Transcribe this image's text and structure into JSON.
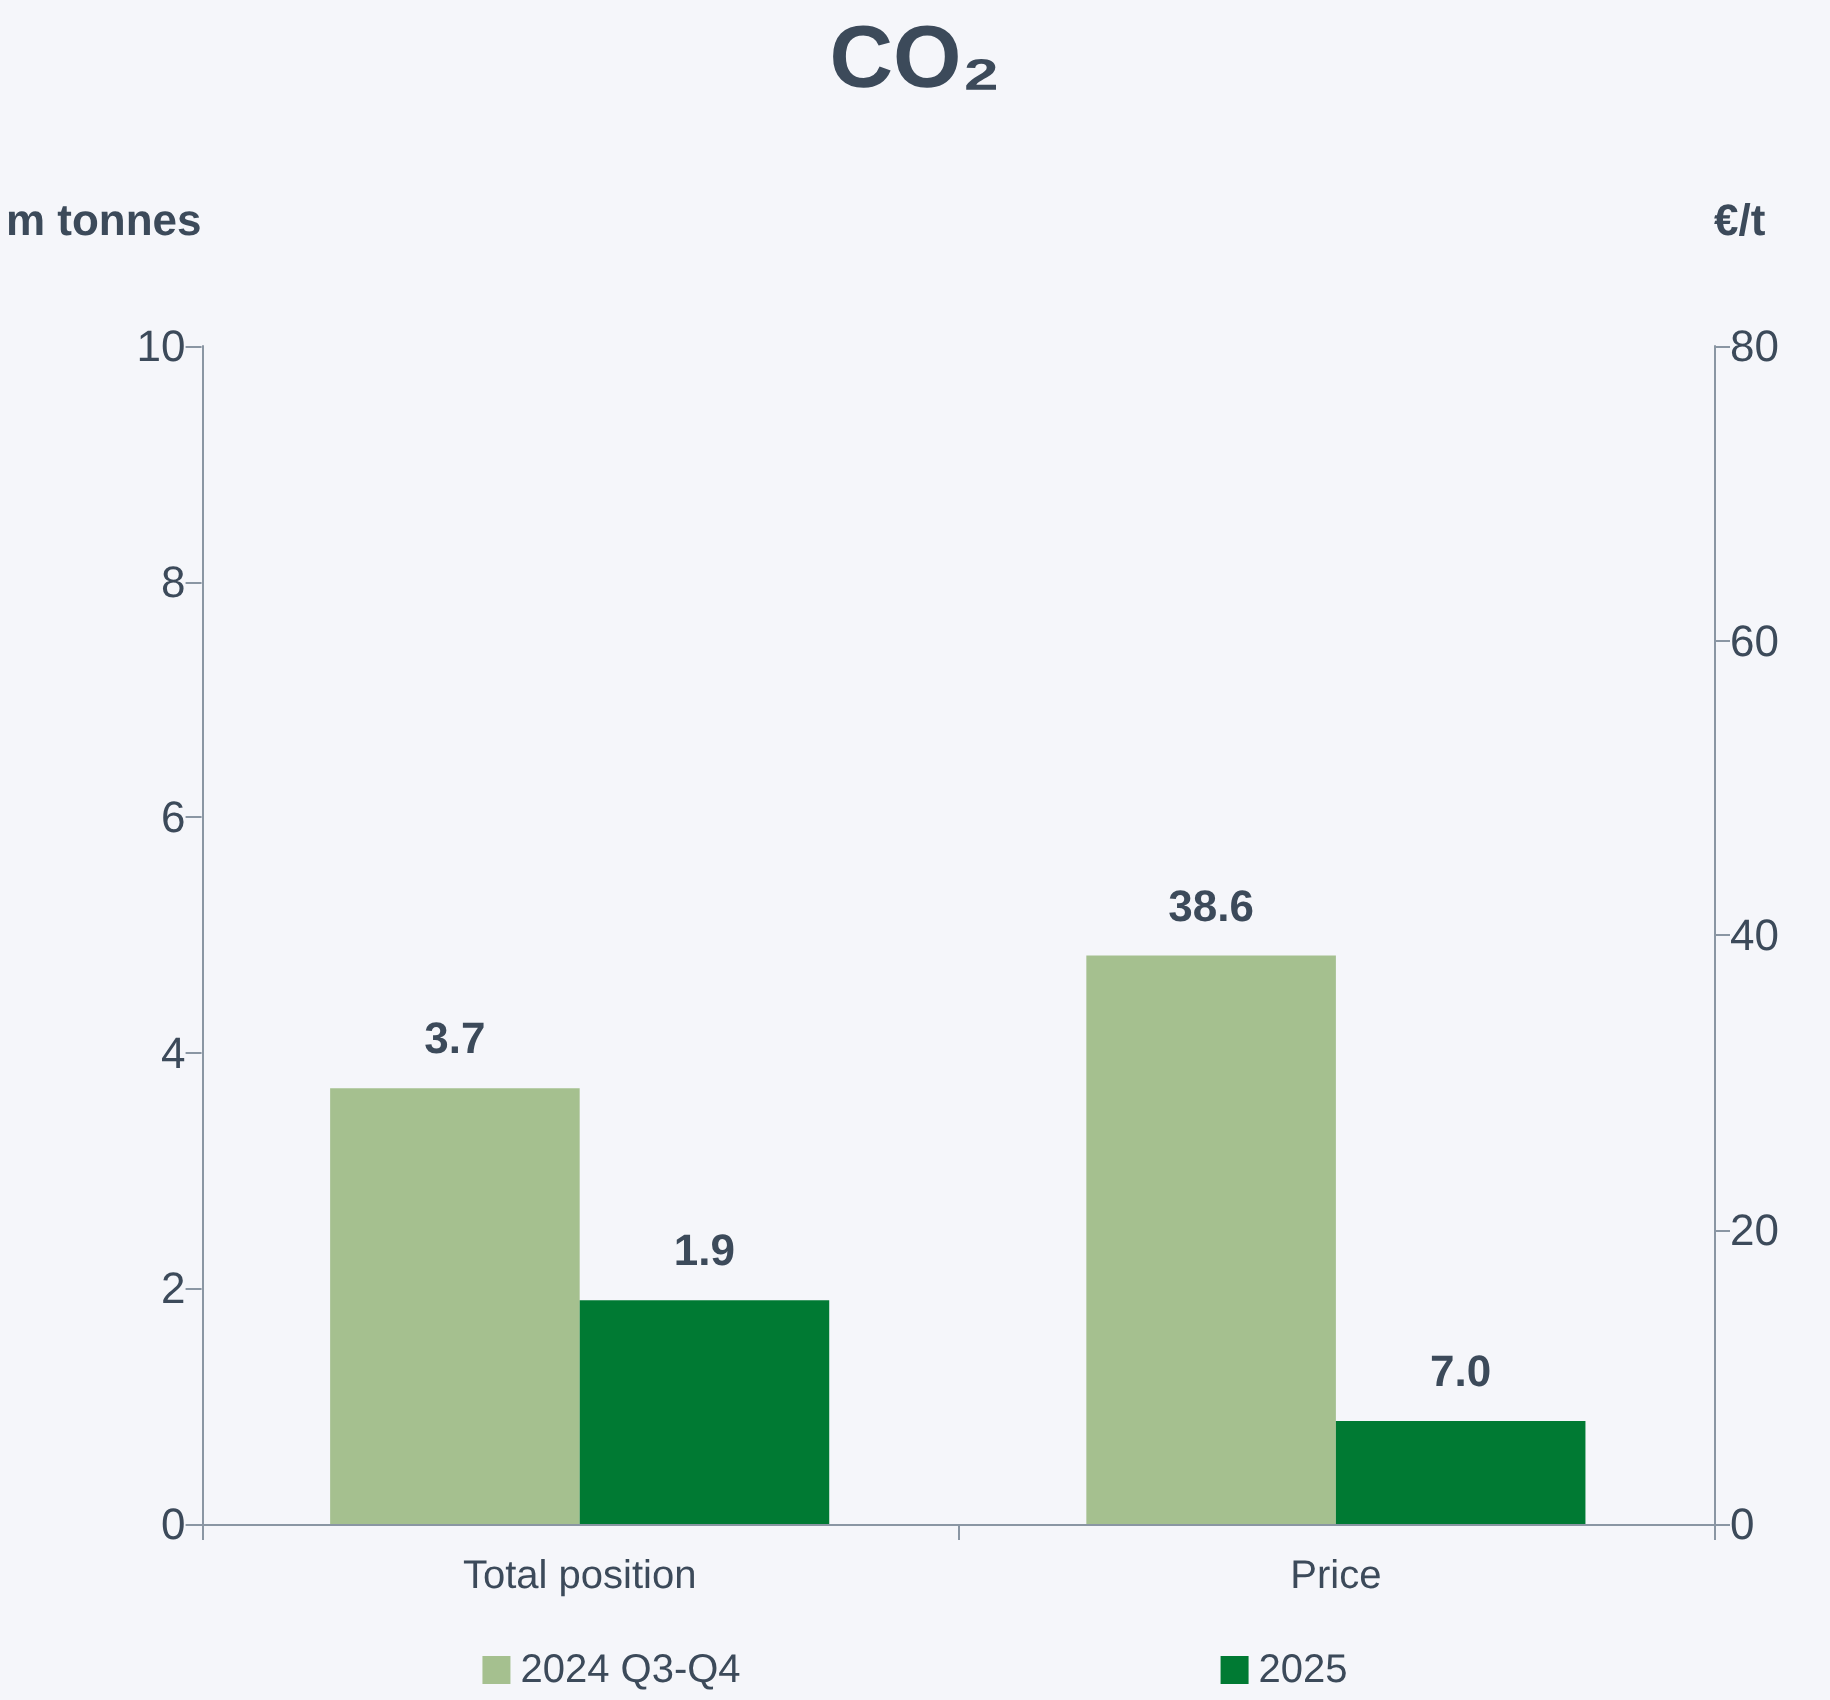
{
  "chart_data": {
    "type": "bar",
    "title": "CO₂",
    "ylabel": "m tonnes",
    "y2label": "€/t",
    "categories": [
      "Total position",
      "Price"
    ],
    "series": [
      {
        "name": "2024 Q3-Q4",
        "color": "#a5c08f",
        "values": [
          3.7,
          null
        ],
        "value_labels": [
          "3.7",
          null
        ]
      },
      {
        "name": "2025",
        "color": "#007a33",
        "values": [
          1.9,
          null
        ],
        "value_labels": [
          "1.9",
          null
        ]
      },
      {
        "color": "#a5c08f",
        "axis": "y2",
        "values": [
          null,
          38.6
        ],
        "value_labels": [
          null,
          "38.6"
        ]
      },
      {
        "color": "#007a33",
        "axis": "y2",
        "values": [
          null,
          7.0
        ],
        "value_labels": [
          null,
          "7.0"
        ]
      }
    ],
    "ylim": [
      0,
      10
    ],
    "yticks": [
      0,
      2,
      4,
      6,
      8,
      10
    ],
    "y2lim": [
      0,
      80
    ],
    "y2ticks": [
      0,
      20,
      40,
      60,
      80
    ],
    "grid": false,
    "legend": "bottom"
  }
}
